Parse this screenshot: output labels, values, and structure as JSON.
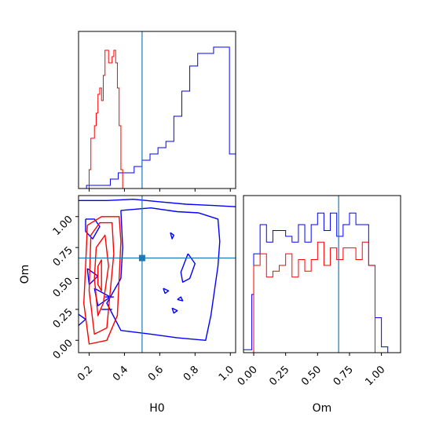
{
  "chart_data": {
    "type": "corner",
    "colors": {
      "blue": "#0000ff",
      "red": "#ff0000",
      "truth": "#1f77b4"
    },
    "parameters": [
      "H0",
      "Om"
    ],
    "truths": {
      "H0": 0.5,
      "Om": 0.665
    },
    "panels": {
      "h0_hist": {
        "xlim": [
          0.14,
          1.03
        ],
        "bin_edges": [
          0.14,
          0.185,
          0.23,
          0.275,
          0.32,
          0.365,
          0.41,
          0.455,
          0.5,
          0.545,
          0.59,
          0.635,
          0.68,
          0.725,
          0.77,
          0.815,
          0.86,
          0.905,
          0.95,
          0.995,
          1.03
        ],
        "blue_counts": [
          0,
          0.5,
          0.5,
          0.5,
          1.5,
          2.5,
          2.5,
          3.5,
          4.5,
          5.5,
          6.5,
          7.5,
          11.5,
          15.5,
          19.5,
          21.5,
          21.5,
          22.5,
          22.5,
          5.5
        ],
        "red_x": [
          0.14,
          0.145,
          0.15,
          0.16,
          0.17,
          0.18,
          0.19,
          0.2,
          0.21,
          0.22,
          0.23,
          0.24,
          0.25,
          0.26,
          0.27,
          0.28,
          0.29,
          0.3,
          0.31,
          0.32,
          0.33,
          0.34,
          0.35,
          0.36,
          0.37,
          0.38,
          0.39
        ],
        "red_y": [
          0,
          0,
          0,
          0,
          0,
          0,
          0,
          3,
          8,
          8,
          10,
          12,
          15,
          16,
          14,
          18,
          22,
          22,
          20,
          20,
          21,
          22,
          20,
          16,
          10,
          3,
          0
        ],
        "ymax": 25
      },
      "scatter": {
        "xlim": [
          0.14,
          1.03
        ],
        "ylim": [
          -0.1,
          1.17
        ],
        "x_ticks": [
          "0.2",
          "0.4",
          "0.6",
          "0.8",
          "1.0"
        ],
        "x_tick_values": [
          0.2,
          0.4,
          0.6,
          0.8,
          1.0
        ],
        "y_ticks": [
          "0.00",
          "0.25",
          "0.50",
          "0.75",
          "1.00"
        ],
        "y_tick_values": [
          0.0,
          0.25,
          0.5,
          0.75,
          1.0
        ],
        "xlabel": "H0",
        "ylabel": "Om",
        "blue_contours": [
          [
            [
              0.14,
              1.13
            ],
            [
              0.3,
              1.13
            ],
            [
              0.45,
              1.14
            ],
            [
              0.6,
              1.12
            ],
            [
              0.75,
              1.1
            ],
            [
              0.9,
              1.09
            ],
            [
              1.03,
              1.08
            ]
          ],
          [
            [
              0.38,
              1.05
            ],
            [
              0.55,
              1.07
            ],
            [
              0.7,
              1.04
            ],
            [
              0.82,
              1.03
            ],
            [
              0.93,
              0.98
            ],
            [
              0.94,
              0.8
            ],
            [
              0.93,
              0.6
            ],
            [
              0.91,
              0.4
            ],
            [
              0.89,
              0.2
            ],
            [
              0.86,
              0.0
            ],
            [
              0.7,
              0.02
            ],
            [
              0.55,
              0.05
            ],
            [
              0.38,
              0.08
            ],
            [
              0.3,
              0.3
            ],
            [
              0.38,
              0.5
            ],
            [
              0.39,
              0.75
            ],
            [
              0.38,
              1.05
            ]
          ],
          [
            [
              0.76,
              0.7
            ],
            [
              0.8,
              0.62
            ],
            [
              0.77,
              0.5
            ],
            [
              0.73,
              0.47
            ],
            [
              0.72,
              0.55
            ],
            [
              0.76,
              0.7
            ]
          ],
          [
            [
              0.62,
              0.42
            ],
            [
              0.65,
              0.4
            ],
            [
              0.63,
              0.38
            ],
            [
              0.62,
              0.42
            ]
          ],
          [
            [
              0.7,
              0.33
            ],
            [
              0.72,
              0.35
            ],
            [
              0.73,
              0.32
            ],
            [
              0.7,
              0.33
            ]
          ],
          [
            [
              0.67,
              0.26
            ],
            [
              0.7,
              0.24
            ],
            [
              0.68,
              0.22
            ],
            [
              0.67,
              0.26
            ]
          ],
          [
            [
              0.66,
              0.87
            ],
            [
              0.68,
              0.85
            ],
            [
              0.67,
              0.82
            ],
            [
              0.66,
              0.87
            ]
          ],
          [
            [
              0.18,
              0.98
            ],
            [
              0.23,
              0.98
            ],
            [
              0.26,
              0.92
            ],
            [
              0.22,
              0.82
            ],
            [
              0.18,
              0.88
            ],
            [
              0.18,
              0.98
            ]
          ],
          [
            [
              0.19,
              0.58
            ],
            [
              0.25,
              0.52
            ],
            [
              0.2,
              0.45
            ],
            [
              0.19,
              0.58
            ]
          ],
          [
            [
              0.23,
              0.42
            ],
            [
              0.32,
              0.35
            ],
            [
              0.25,
              0.28
            ],
            [
              0.23,
              0.42
            ]
          ],
          [
            [
              0.14,
              0.21
            ],
            [
              0.18,
              0.17
            ],
            [
              0.14,
              0.12
            ]
          ],
          [
            [
              0.29,
              0.35
            ],
            [
              0.34,
              0.35
            ]
          ],
          [
            [
              0.27,
              0.25
            ],
            [
              0.33,
              0.25
            ]
          ]
        ],
        "red_contours": [
          [
            [
              0.19,
              0.93
            ],
            [
              0.27,
              1.0
            ],
            [
              0.37,
              1.0
            ],
            [
              0.38,
              0.8
            ],
            [
              0.37,
              0.5
            ],
            [
              0.36,
              0.2
            ],
            [
              0.3,
              0.0
            ],
            [
              0.2,
              -0.03
            ],
            [
              0.17,
              0.3
            ],
            [
              0.18,
              0.6
            ],
            [
              0.19,
              0.93
            ]
          ],
          [
            [
              0.21,
              0.85
            ],
            [
              0.26,
              0.95
            ],
            [
              0.33,
              0.95
            ],
            [
              0.34,
              0.7
            ],
            [
              0.32,
              0.4
            ],
            [
              0.3,
              0.1
            ],
            [
              0.23,
              0.05
            ],
            [
              0.2,
              0.4
            ],
            [
              0.21,
              0.85
            ]
          ],
          [
            [
              0.24,
              0.75
            ],
            [
              0.29,
              0.85
            ],
            [
              0.31,
              0.6
            ],
            [
              0.28,
              0.3
            ],
            [
              0.25,
              0.2
            ],
            [
              0.23,
              0.5
            ],
            [
              0.24,
              0.75
            ]
          ],
          [
            [
              0.25,
              0.6
            ],
            [
              0.27,
              0.65
            ],
            [
              0.27,
              0.4
            ],
            [
              0.25,
              0.45
            ],
            [
              0.25,
              0.6
            ]
          ]
        ]
      },
      "om_hist": {
        "xlim": [
          -0.08,
          1.15
        ],
        "x_ticks": [
          "0.00",
          "0.25",
          "0.50",
          "0.75",
          "1.00"
        ],
        "x_tick_values": [
          0.0,
          0.25,
          0.5,
          0.75,
          1.0
        ],
        "xlabel": "Om",
        "bin_edges": [
          -0.08,
          -0.015,
          0.0,
          0.05,
          0.1,
          0.15,
          0.2,
          0.25,
          0.3,
          0.35,
          0.4,
          0.45,
          0.5,
          0.55,
          0.6,
          0.65,
          0.7,
          0.75,
          0.8,
          0.85,
          0.9,
          0.95,
          1.0,
          1.05,
          1.15
        ],
        "blue_counts": [
          0.5,
          10,
          17,
          22,
          19,
          21,
          21,
          20,
          19,
          22,
          19,
          22,
          24,
          21,
          24,
          20,
          22,
          24,
          22,
          22,
          15,
          6,
          1,
          0
        ],
        "red_counts": [
          0,
          0,
          15,
          17,
          13,
          14,
          15,
          17,
          13,
          16,
          14,
          16,
          19,
          15,
          18,
          16,
          18,
          18,
          16,
          19,
          15,
          0,
          0,
          0
        ],
        "ymax": 27
      }
    }
  }
}
